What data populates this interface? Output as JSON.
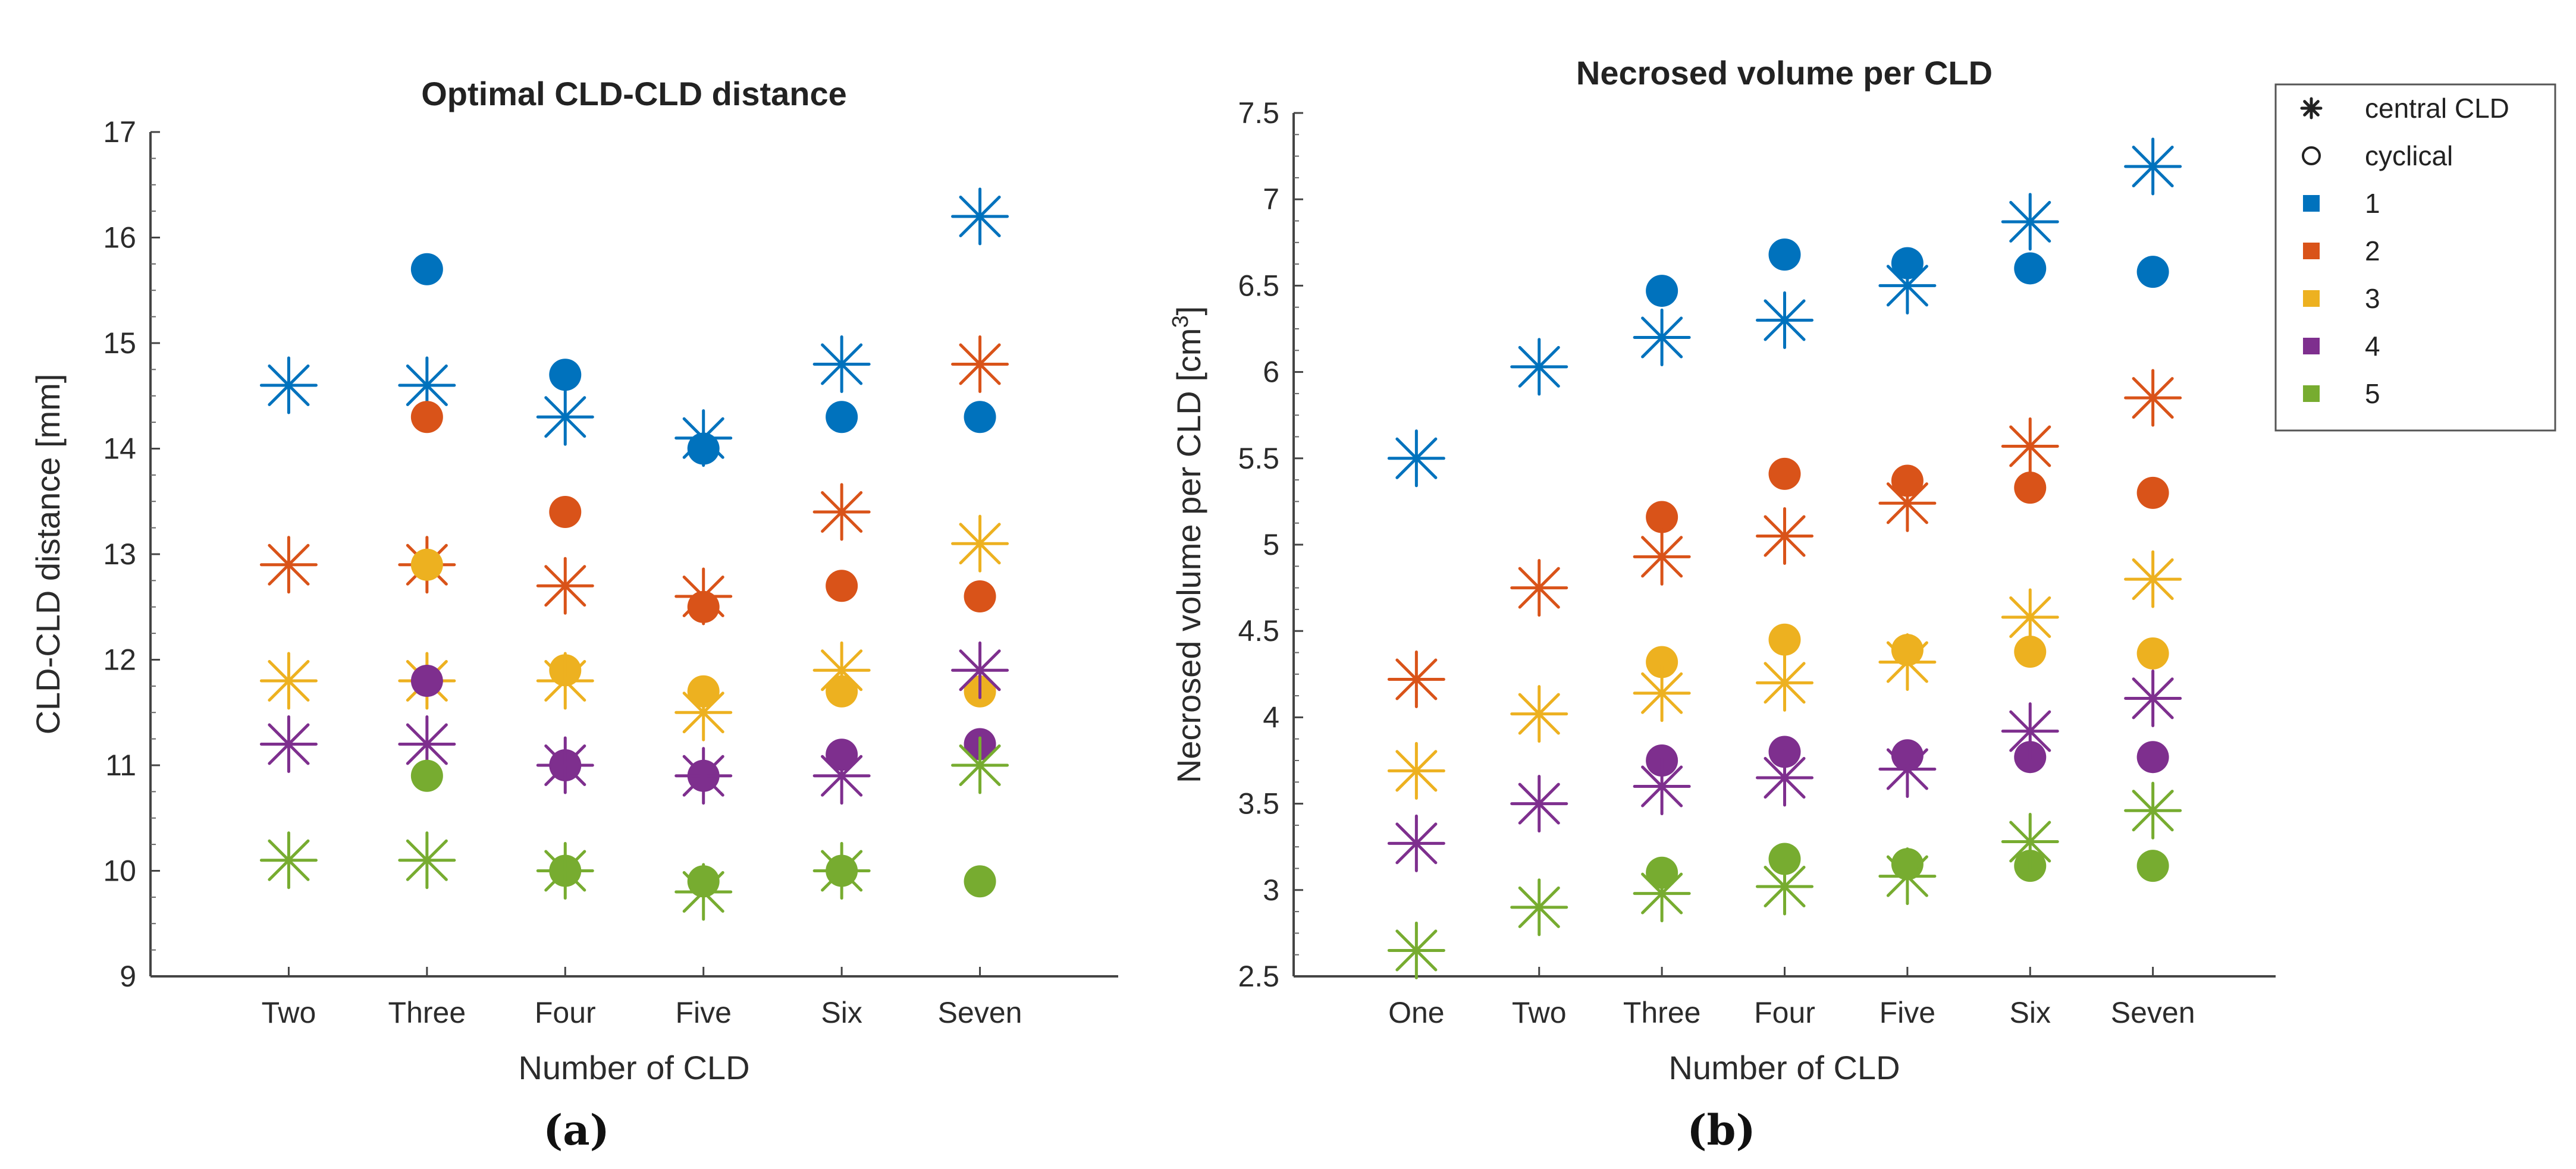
{
  "series_colors": [
    "#0072BD",
    "#D95319",
    "#EDB120",
    "#7E2F8E",
    "#77AC30"
  ],
  "legend": {
    "entries": [
      {
        "symbol": "star",
        "label": "central CLD"
      },
      {
        "symbol": "circle",
        "label": "cyclical"
      },
      {
        "symbol": "square",
        "label": "1",
        "series": 0
      },
      {
        "symbol": "square",
        "label": "2",
        "series": 1
      },
      {
        "symbol": "square",
        "label": "3",
        "series": 2
      },
      {
        "symbol": "square",
        "label": "4",
        "series": 3
      },
      {
        "symbol": "square",
        "label": "5",
        "series": 4
      }
    ]
  },
  "chart_data": [
    {
      "type": "scatter",
      "caption": "(a)",
      "title": "Optimal CLD-CLD distance",
      "xlabel": "Number of CLD",
      "ylabel": "CLD-CLD distance [mm]",
      "categories": [
        "Two",
        "Three",
        "Four",
        "Five",
        "Six",
        "Seven"
      ],
      "ylim": [
        9,
        17
      ],
      "yticks": [
        9,
        10,
        11,
        12,
        13,
        14,
        15,
        16,
        17
      ],
      "series": [
        {
          "name": "1",
          "central": [
            14.6,
            14.6,
            14.3,
            14.1,
            14.8,
            16.2
          ],
          "cyclical": [
            null,
            15.7,
            14.7,
            14.0,
            14.3,
            14.3
          ]
        },
        {
          "name": "2",
          "central": [
            12.9,
            12.9,
            12.7,
            12.6,
            13.4,
            14.8
          ],
          "cyclical": [
            null,
            14.3,
            13.4,
            12.5,
            12.7,
            12.6
          ]
        },
        {
          "name": "3",
          "central": [
            11.8,
            11.8,
            11.8,
            11.5,
            11.9,
            13.1
          ],
          "cyclical": [
            null,
            12.9,
            11.9,
            11.7,
            11.7,
            11.7
          ]
        },
        {
          "name": "4",
          "central": [
            11.2,
            11.2,
            11.0,
            10.9,
            10.9,
            11.9
          ],
          "cyclical": [
            null,
            11.8,
            11.0,
            10.9,
            11.1,
            11.2
          ]
        },
        {
          "name": "5",
          "central": [
            10.1,
            10.1,
            10.0,
            9.8,
            10.0,
            11.0
          ],
          "cyclical": [
            null,
            10.9,
            10.0,
            9.9,
            10.0,
            9.9
          ]
        }
      ]
    },
    {
      "type": "scatter",
      "caption": "(b)",
      "title": "Necrosed volume per CLD",
      "xlabel": "Number of CLD",
      "ylabel_main": "Necrosed volume per CLD [cm",
      "ylabel_sup": "3",
      "ylabel_end": "]",
      "categories": [
        "One",
        "Two",
        "Three",
        "Four",
        "Five",
        "Six",
        "Seven"
      ],
      "ylim": [
        2.5,
        7.5
      ],
      "yticks": [
        "2.5",
        "3",
        "3.5",
        "4",
        "4.5",
        "5",
        "5.5",
        "6",
        "6.5",
        "7",
        "7.5"
      ],
      "series": [
        {
          "name": "1",
          "central": [
            5.5,
            6.03,
            6.2,
            6.3,
            6.5,
            6.87,
            7.19
          ],
          "cyclical": [
            null,
            null,
            6.47,
            6.68,
            6.63,
            6.6,
            6.58
          ]
        },
        {
          "name": "2",
          "central": [
            4.22,
            4.75,
            4.93,
            5.05,
            5.24,
            5.57,
            5.85
          ],
          "cyclical": [
            null,
            null,
            5.16,
            5.41,
            5.37,
            5.33,
            5.3
          ]
        },
        {
          "name": "3",
          "central": [
            3.69,
            4.02,
            4.14,
            4.2,
            4.32,
            4.58,
            4.8
          ],
          "cyclical": [
            null,
            null,
            4.32,
            4.45,
            4.39,
            4.38,
            4.37
          ]
        },
        {
          "name": "4",
          "central": [
            3.27,
            3.5,
            3.6,
            3.65,
            3.7,
            3.92,
            4.11
          ],
          "cyclical": [
            null,
            null,
            3.75,
            3.8,
            3.78,
            3.77,
            3.77
          ]
        },
        {
          "name": "5",
          "central": [
            2.65,
            2.9,
            2.98,
            3.02,
            3.08,
            3.28,
            3.46
          ],
          "cyclical": [
            null,
            null,
            3.1,
            3.18,
            3.15,
            3.14,
            3.14
          ]
        }
      ]
    }
  ]
}
